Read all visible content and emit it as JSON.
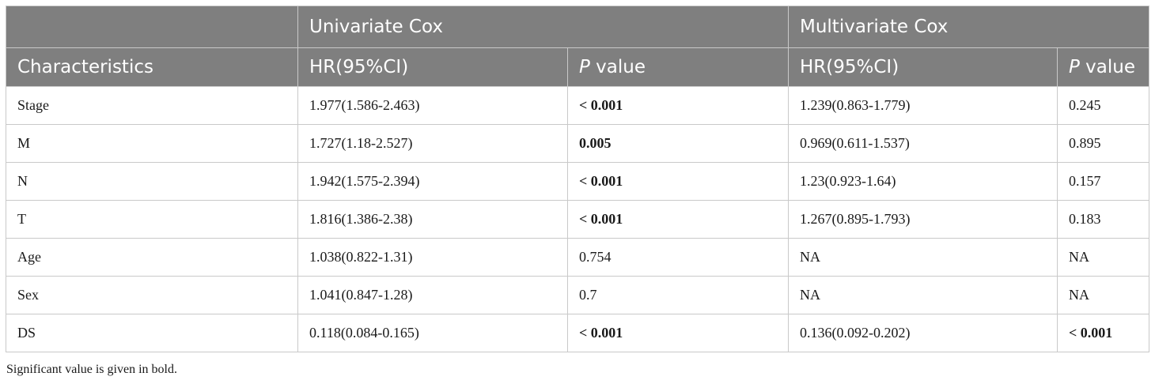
{
  "table": {
    "group_headers": {
      "empty": "",
      "univariate": "Univariate Cox",
      "multivariate": "Multivariate Cox"
    },
    "column_headers": {
      "characteristics": "Characteristics",
      "uni_hr": "HR(95%CI)",
      "uni_p_italic": "P",
      "uni_p_rest": " value",
      "multi_hr": "HR(95%CI)",
      "multi_p_italic": "P",
      "multi_p_rest": " value"
    },
    "rows": [
      {
        "characteristic": "Stage",
        "uni_hr": "1.977(1.586-2.463)",
        "uni_p": "< 0.001",
        "uni_p_bold": true,
        "multi_hr": "1.239(0.863-1.779)",
        "multi_p": "0.245",
        "multi_p_bold": false
      },
      {
        "characteristic": "M",
        "uni_hr": "1.727(1.18-2.527)",
        "uni_p": "0.005",
        "uni_p_bold": true,
        "multi_hr": "0.969(0.611-1.537)",
        "multi_p": "0.895",
        "multi_p_bold": false
      },
      {
        "characteristic": "N",
        "uni_hr": "1.942(1.575-2.394)",
        "uni_p": "< 0.001",
        "uni_p_bold": true,
        "multi_hr": "1.23(0.923-1.64)",
        "multi_p": "0.157",
        "multi_p_bold": false
      },
      {
        "characteristic": "T",
        "uni_hr": "1.816(1.386-2.38)",
        "uni_p": "< 0.001",
        "uni_p_bold": true,
        "multi_hr": "1.267(0.895-1.793)",
        "multi_p": "0.183",
        "multi_p_bold": false
      },
      {
        "characteristic": "Age",
        "uni_hr": "1.038(0.822-1.31)",
        "uni_p": "0.754",
        "uni_p_bold": false,
        "multi_hr": "NA",
        "multi_p": "NA",
        "multi_p_bold": false
      },
      {
        "characteristic": "Sex",
        "uni_hr": "1.041(0.847-1.28)",
        "uni_p": "0.7",
        "uni_p_bold": false,
        "multi_hr": "NA",
        "multi_p": "NA",
        "multi_p_bold": false
      },
      {
        "characteristic": "DS",
        "uni_hr": "0.118(0.084-0.165)",
        "uni_p": "< 0.001",
        "uni_p_bold": true,
        "multi_hr": "0.136(0.092-0.202)",
        "multi_p": "< 0.001",
        "multi_p_bold": true
      }
    ],
    "footnote": "Significant value is given in bold."
  },
  "colors": {
    "header_bg": "#7f7f7f",
    "header_text": "#ffffff",
    "grid_line": "#c9c9c9"
  }
}
